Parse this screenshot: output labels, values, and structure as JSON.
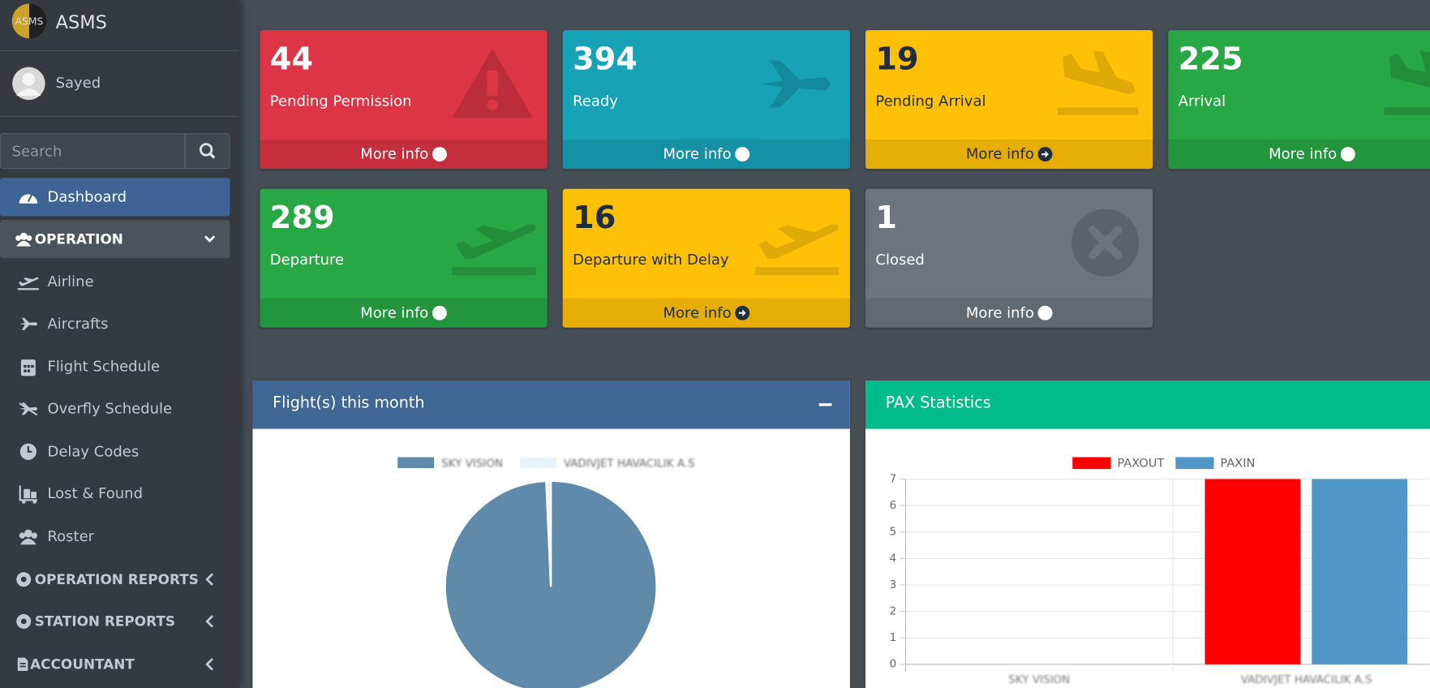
{
  "brand": {
    "logo": "ASMS",
    "name": "ASMS"
  },
  "user": {
    "name": "Sayed"
  },
  "search": {
    "placeholder": "Search"
  },
  "nav": [
    "Dashboard",
    "OPERATION",
    "Airline",
    "Aircrafts",
    "Flight Schedule",
    "Overfly Schedule",
    "Delay Codes",
    "Lost & Found",
    "Roster",
    "OPERATION REPORTS",
    "STATION REPORTS",
    "ACCOUNTANT"
  ],
  "cards": [
    {
      "value": "44",
      "label": "Pending Permission",
      "link": "More info"
    },
    {
      "value": "394",
      "label": "Ready",
      "link": "More info"
    },
    {
      "value": "19",
      "label": "Pending Arrival",
      "link": "More info"
    },
    {
      "value": "225",
      "label": "Arrival",
      "link": "More info"
    },
    {
      "value": "289",
      "label": "Departure",
      "link": "More info"
    },
    {
      "value": "16",
      "label": "Departure with Delay",
      "link": "More info"
    },
    {
      "value": "1",
      "label": "Closed",
      "link": "More info"
    }
  ],
  "panels": [
    {
      "title": "Flight(s) this month",
      "chart_data": {
        "type": "pie",
        "categories": [
          "SKY VISION",
          "VADIVJET HAVACILIK A.S"
        ],
        "values": [
          99.3,
          0.7
        ],
        "colors": [
          "#5f8aaa",
          "#eaf3fb"
        ]
      }
    },
    {
      "title": "PAX Statistics",
      "chart_data": {
        "type": "bar",
        "categories": [
          "SKY VISION",
          "VADIVJET HAVACILIK A.S"
        ],
        "series": [
          {
            "name": "PAXOUT",
            "color": "#ff0000",
            "values": [
              0,
              7
            ]
          },
          {
            "name": "PAXIN",
            "color": "#4e97c6",
            "values": [
              0,
              7
            ]
          }
        ],
        "ylim": [
          0,
          7
        ],
        "yticks": [
          0,
          1,
          2,
          3,
          4,
          5,
          6,
          7
        ],
        "grid": true
      }
    }
  ]
}
